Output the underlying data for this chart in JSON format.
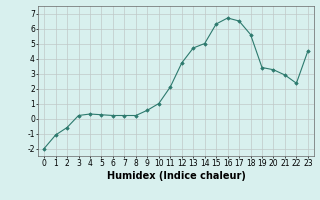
{
  "x": [
    0,
    1,
    2,
    3,
    4,
    5,
    6,
    7,
    8,
    9,
    10,
    11,
    12,
    13,
    14,
    15,
    16,
    17,
    18,
    19,
    20,
    21,
    22,
    23
  ],
  "y": [
    -2,
    -1.1,
    -0.6,
    0.2,
    0.3,
    0.25,
    0.2,
    0.2,
    0.2,
    0.55,
    1.0,
    2.1,
    3.7,
    4.7,
    5.0,
    6.3,
    6.7,
    6.5,
    5.6,
    3.4,
    3.25,
    2.9,
    2.35,
    4.5
  ],
  "xlabel": "Humidex (Indice chaleur)",
  "ylim": [
    -2.5,
    7.5
  ],
  "xlim": [
    -0.5,
    23.5
  ],
  "yticks": [
    -2,
    -1,
    0,
    1,
    2,
    3,
    4,
    5,
    6,
    7
  ],
  "xticks": [
    0,
    1,
    2,
    3,
    4,
    5,
    6,
    7,
    8,
    9,
    10,
    11,
    12,
    13,
    14,
    15,
    16,
    17,
    18,
    19,
    20,
    21,
    22,
    23
  ],
  "line_color": "#2d7a6e",
  "marker": "D",
  "marker_size": 1.8,
  "background_color": "#d8f0ee",
  "grid_color": "#c0c8c8",
  "xlabel_fontsize": 7,
  "tick_fontsize": 5.5
}
